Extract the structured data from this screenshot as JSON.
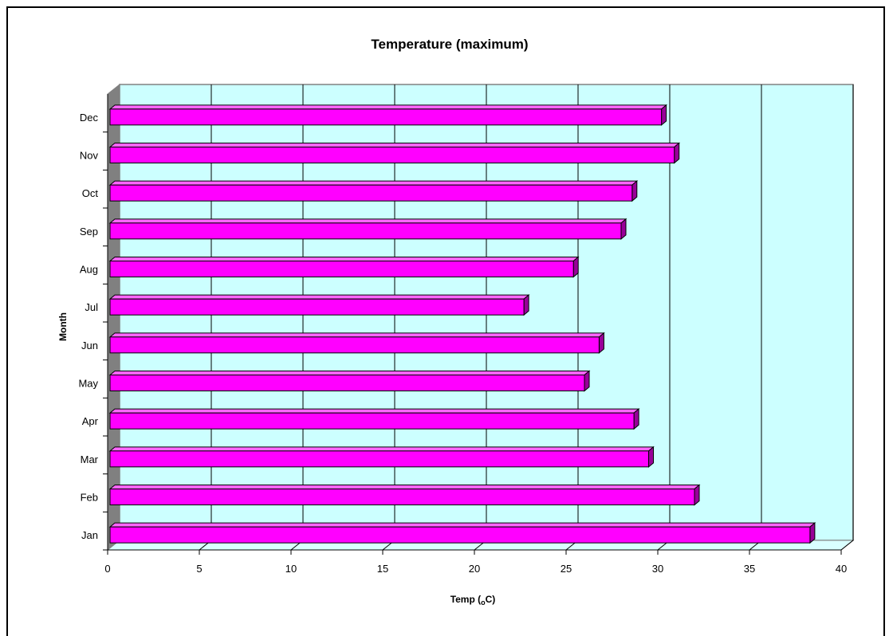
{
  "chart_data": {
    "type": "bar",
    "orientation": "horizontal",
    "title": "Temperature (maximum)",
    "xlabel": "Temp (",
    "xlabel_sub": "o",
    "xlabel_end": "C)",
    "ylabel": "Month",
    "categories": [
      "Jan",
      "Feb",
      "Mar",
      "Apr",
      "May",
      "Jun",
      "Jul",
      "Aug",
      "Sep",
      "Oct",
      "Nov",
      "Dec"
    ],
    "values": [
      38.3,
      32.0,
      29.5,
      28.7,
      26.0,
      26.8,
      22.7,
      25.4,
      28.0,
      28.6,
      30.9,
      30.2
    ],
    "xlim": [
      0,
      40
    ],
    "xticks": [
      0,
      5,
      10,
      15,
      20,
      25,
      30,
      35,
      40
    ],
    "grid": true,
    "legend": "none",
    "colors": {
      "bar": "#ff00ff",
      "bar_top": "#ff66ff",
      "bar_side": "#990099",
      "plot_back": "#ccffff",
      "plot_floor": "#808080",
      "grid": "#000000"
    }
  }
}
